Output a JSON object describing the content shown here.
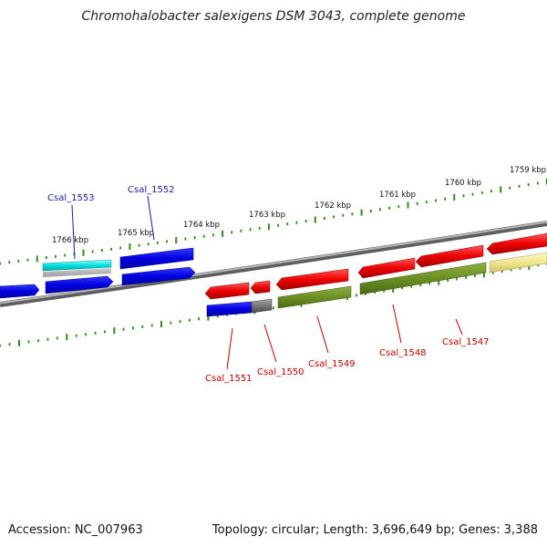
{
  "title": "Chromohalobacter salexigens DSM 3043, complete genome",
  "footer": {
    "accession": "Accession: NC_007963",
    "summary": "Topology: circular; Length: 3,696,649 bp; Genes: 3,388"
  },
  "colors": {
    "backbone": "#808080",
    "tick": "#2e8b1a",
    "plus_strand_label": "#1a1aa8",
    "minus_strand_label": "#c00000",
    "blue_gene": "#0000e0",
    "red_gene": "#ee0000",
    "olive_gene": "#6b8e23",
    "cyan_gene": "#00e0e0",
    "pale_yellow_gene": "#f0e68c",
    "gray_gene": "#777777"
  },
  "scale_labels": [
    "1766 kbp",
    "1765 kbp",
    "1764 kbp",
    "1763 kbp",
    "1762 kbp",
    "1761 kbp",
    "1760 kbp",
    "1759 kbp"
  ],
  "gene_labels": [
    {
      "text": "Csal_1553",
      "strand": "plus"
    },
    {
      "text": "Csal_1552",
      "strand": "plus"
    },
    {
      "text": "Csal_1551",
      "strand": "minus"
    },
    {
      "text": "Csal_1550",
      "strand": "minus"
    },
    {
      "text": "Csal_1549",
      "strand": "minus"
    },
    {
      "text": "Csal_1548",
      "strand": "minus"
    },
    {
      "text": "Csal_1547",
      "strand": "minus"
    }
  ]
}
